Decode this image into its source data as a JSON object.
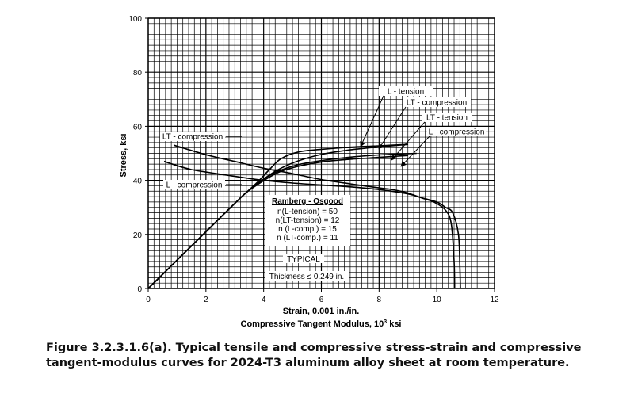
{
  "chart_data": {
    "type": "line",
    "xlabel": "Strain, 0.001 in./in.",
    "xlabel2_prefix": "Compressive Tangent Modulus, 10",
    "xlabel2_sup": "3",
    "xlabel2_suffix": " ksi",
    "ylabel": "Stress, ksi",
    "xlim": [
      0,
      12
    ],
    "ylim": [
      0,
      100
    ],
    "xticks": [
      0,
      2,
      4,
      6,
      8,
      10,
      12
    ],
    "yticks": [
      0,
      20,
      40,
      60,
      80,
      100
    ],
    "grid": true,
    "series": [
      {
        "name": "L - tension",
        "x": [
          0,
          1,
          2,
          3,
          3.4,
          3.8,
          4.2,
          4.6,
          5.2,
          6,
          7,
          8,
          9
        ],
        "y": [
          0,
          10.5,
          21,
          31.5,
          35.5,
          39.5,
          44,
          48,
          50.5,
          51.5,
          52.3,
          52.8,
          53.3
        ]
      },
      {
        "name": "LT - compression",
        "x": [
          0,
          1,
          2,
          3,
          3.4,
          3.8,
          4.2,
          4.6,
          5.2,
          6,
          7,
          8,
          9
        ],
        "y": [
          0,
          10.5,
          21,
          31.5,
          35.5,
          38.5,
          41.2,
          43.3,
          45.2,
          46.8,
          47.8,
          48.5,
          49.2
        ]
      },
      {
        "name": "LT - tension",
        "x": [
          0,
          1,
          2,
          3,
          3.4,
          3.8,
          4.2,
          4.6,
          5.2,
          6,
          7,
          8,
          9.3
        ],
        "y": [
          0,
          10.5,
          21,
          31.5,
          35.5,
          39,
          41.8,
          43.8,
          45.8,
          47.3,
          48.6,
          49.4,
          50
        ]
      },
      {
        "name": "L - compression",
        "x": [
          0,
          1,
          2,
          3,
          3.4,
          3.8,
          4.2,
          4.6,
          5.2,
          6,
          7,
          8,
          9
        ],
        "y": [
          0,
          10.5,
          21,
          31.5,
          35.5,
          38.8,
          42,
          44.5,
          47.2,
          49.6,
          51.3,
          52.4,
          53.3
        ]
      },
      {
        "name": "LT - compression",
        "x": [
          0.9,
          2,
          3,
          4,
          5,
          6,
          7,
          8,
          8.5,
          9,
          9.5,
          9.9,
          10.3,
          10.5,
          10.6,
          10.62
        ],
        "y": [
          53,
          49.5,
          47,
          44.5,
          42.5,
          40.3,
          38.7,
          37.2,
          36.5,
          35.3,
          33.4,
          32,
          29,
          24,
          10,
          0
        ]
      },
      {
        "name": "L - compression",
        "x": [
          0.55,
          1.5,
          3,
          4,
          5,
          6,
          7,
          8,
          9,
          9.5,
          10,
          10.3,
          10.55,
          10.75,
          10.8,
          10.82
        ],
        "y": [
          47,
          44,
          41.5,
          40,
          39,
          38.3,
          37.6,
          36.6,
          35,
          33.5,
          32,
          30,
          28,
          20,
          8,
          0
        ]
      }
    ],
    "annotations": [
      "L - tension",
      "LT - compression",
      "LT - tension",
      "L - compression",
      "LT - compression",
      "L - compression"
    ],
    "ramberg": {
      "title": "Ramberg - Osgood",
      "lines": [
        "n(L-tension) = 50",
        "n(LT-tension) = 12",
        "n (L-comp.) = 15",
        "n (LT-comp.) = 11"
      ]
    },
    "typical": "TYPICAL",
    "thickness": "Thickness ≤ 0.249 in."
  },
  "caption": {
    "line1": "Figure 3.2.3.1.6(a).  Typical tensile and compressive stress-strain and compressive",
    "line2": "tangent-modulus curves for 2024-T3 aluminum alloy sheet at room temperature."
  }
}
